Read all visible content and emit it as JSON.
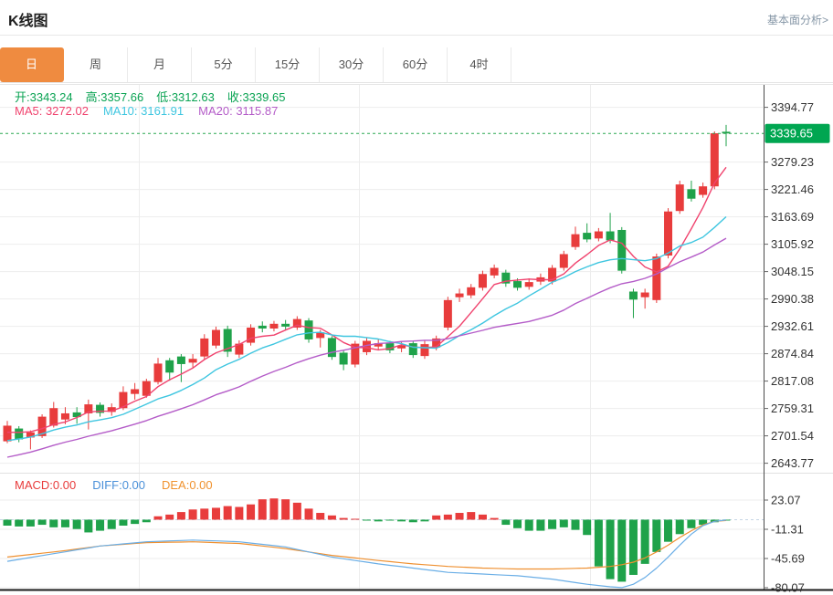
{
  "header": {
    "title": "K线图",
    "link": "基本面分析>"
  },
  "tabs": {
    "items": [
      "日",
      "周",
      "月",
      "5分",
      "15分",
      "30分",
      "60分",
      "4时"
    ],
    "active": "日"
  },
  "info": {
    "open": "开:3343.24",
    "high": "高:3357.66",
    "low": "低:3312.63",
    "close": "收:3339.65"
  },
  "ma_info": {
    "ma5": "MA5: 3272.02",
    "ma10": "MA10: 3161.91",
    "ma20": "MA20: 3115.87"
  },
  "macd_info": {
    "macd": "MACD:0.00",
    "diff": "DIFF:0.00",
    "dea": "DEA:0.00"
  },
  "colors": {
    "accent_orange": "#ef8b40",
    "up_red": "#e83c3c",
    "down_green": "#1fa24a",
    "ohlc_green": "#0aa353",
    "ma5_pink": "#f0436e",
    "ma10_cyan": "#3fc6e0",
    "ma20_purple": "#b45cc8",
    "diff_blue_line": "#6aaee6",
    "dea_orange_line": "#ef9030",
    "macd_label_red": "#e83c3c",
    "diff_label_blue": "#4a90d9",
    "dea_label_orange": "#f0922e",
    "price_line_green": "#2aa852",
    "badge_green": "#00a651",
    "axis_text": "#333333",
    "grid": "#ededed",
    "axis_line": "#4a4a4a",
    "bottom_line": "#1a1a1a",
    "separator": "#e2e2e2",
    "zero_dash": "#c5d5e5",
    "link_gray": "#8596a6"
  },
  "chart_data": {
    "type": "candlestick+macd",
    "title": "K线图",
    "interval": "日",
    "price_axis": {
      "ticks": [
        3394.77,
        3279.23,
        3221.46,
        3163.69,
        3105.92,
        3048.15,
        2990.38,
        2932.61,
        2874.84,
        2817.08,
        2759.31,
        2701.54,
        2643.77
      ],
      "tick_step": 57.77,
      "current_price": 3339.65
    },
    "macd_axis": {
      "ticks": [
        23.07,
        -11.31,
        -45.69,
        -80.07
      ]
    },
    "latest": {
      "open": 3343.24,
      "high": 3357.66,
      "low": 3312.63,
      "close": 3339.65,
      "ma5": 3272.02,
      "ma10": 3161.91,
      "ma20": 3115.87,
      "macd": 0.0,
      "diff": 0.0,
      "dea": 0.0
    },
    "candles": [
      [
        2690,
        2733,
        2686,
        2723
      ],
      [
        2717,
        2722,
        2688,
        2694
      ],
      [
        2698,
        2713,
        2673,
        2709
      ],
      [
        2701,
        2747,
        2697,
        2742
      ],
      [
        2723,
        2773,
        2719,
        2760
      ],
      [
        2736,
        2762,
        2726,
        2749
      ],
      [
        2751,
        2762,
        2727,
        2741
      ],
      [
        2749,
        2778,
        2715,
        2768
      ],
      [
        2767,
        2772,
        2742,
        2750
      ],
      [
        2752,
        2770,
        2744,
        2762
      ],
      [
        2760,
        2806,
        2756,
        2794
      ],
      [
        2790,
        2813,
        2778,
        2800
      ],
      [
        2786,
        2822,
        2782,
        2817
      ],
      [
        2815,
        2866,
        2810,
        2854
      ],
      [
        2861,
        2866,
        2818,
        2835
      ],
      [
        2869,
        2874,
        2815,
        2853
      ],
      [
        2856,
        2874,
        2846,
        2864
      ],
      [
        2869,
        2916,
        2862,
        2907
      ],
      [
        2892,
        2932,
        2886,
        2925
      ],
      [
        2927,
        2934,
        2868,
        2879
      ],
      [
        2873,
        2903,
        2866,
        2896
      ],
      [
        2898,
        2937,
        2892,
        2930
      ],
      [
        2934,
        2943,
        2920,
        2928
      ],
      [
        2928,
        2944,
        2922,
        2938
      ],
      [
        2938,
        2946,
        2924,
        2932
      ],
      [
        2930,
        2954,
        2925,
        2948
      ],
      [
        2945,
        2950,
        2898,
        2905
      ],
      [
        2908,
        2925,
        2888,
        2920
      ],
      [
        2908,
        2912,
        2862,
        2868
      ],
      [
        2877,
        2882,
        2840,
        2852
      ],
      [
        2852,
        2902,
        2846,
        2896
      ],
      [
        2878,
        2908,
        2872,
        2902
      ],
      [
        2890,
        2905,
        2882,
        2897
      ],
      [
        2897,
        2902,
        2876,
        2882
      ],
      [
        2886,
        2900,
        2878,
        2892
      ],
      [
        2897,
        2902,
        2866,
        2872
      ],
      [
        2870,
        2902,
        2864,
        2895
      ],
      [
        2888,
        2913,
        2882,
        2907
      ],
      [
        2930,
        2995,
        2924,
        2988
      ],
      [
        2994,
        3012,
        2984,
        3002
      ],
      [
        2998,
        3022,
        2992,
        3015
      ],
      [
        3014,
        3050,
        3008,
        3043
      ],
      [
        3040,
        3063,
        3034,
        3056
      ],
      [
        3046,
        3052,
        3016,
        3023
      ],
      [
        3028,
        3034,
        3008,
        3014
      ],
      [
        3016,
        3034,
        3010,
        3026
      ],
      [
        3027,
        3044,
        3020,
        3036
      ],
      [
        3027,
        3062,
        3021,
        3056
      ],
      [
        3056,
        3092,
        3050,
        3085
      ],
      [
        3100,
        3143,
        3094,
        3127
      ],
      [
        3130,
        3150,
        3110,
        3116
      ],
      [
        3118,
        3140,
        3112,
        3133
      ],
      [
        3133,
        3172,
        3108,
        3114
      ],
      [
        3136,
        3142,
        3044,
        3050
      ],
      [
        3006,
        3012,
        2950,
        2989
      ],
      [
        2994,
        3012,
        2970,
        3004
      ],
      [
        2988,
        3086,
        2982,
        3080
      ],
      [
        3082,
        3182,
        3076,
        3175
      ],
      [
        3176,
        3240,
        3170,
        3232
      ],
      [
        3222,
        3240,
        3196,
        3202
      ],
      [
        3210,
        3236,
        3204,
        3228
      ],
      [
        3228,
        3344,
        3222,
        3340
      ],
      [
        3343.24,
        3357.66,
        3312.63,
        3339.65
      ]
    ],
    "ma_windows": [
      5,
      10,
      20
    ],
    "macd": {
      "histogram": [
        -7,
        -8,
        -8,
        -6,
        -9,
        -9,
        -11,
        -15,
        -13,
        -11,
        -7,
        -5,
        -3,
        4,
        6,
        9,
        12,
        13,
        14,
        16,
        15,
        18,
        24,
        25,
        24,
        20,
        13,
        8,
        5,
        2,
        1,
        -1,
        -2,
        -1,
        -2,
        -3,
        -2,
        5,
        6,
        8,
        9,
        6,
        2,
        -6,
        -10,
        -13,
        -13,
        -11,
        -9,
        -12,
        -18,
        -55,
        -70,
        -73,
        -65,
        -52,
        -38,
        -26,
        -17,
        -10,
        -6,
        -3,
        -1
      ],
      "diff": [
        -49,
        -46.8,
        -44.5,
        -42.3,
        -40,
        -37.8,
        -35.5,
        -33.3,
        -31,
        -29.8,
        -28.5,
        -27.3,
        -26,
        -25.5,
        -25,
        -24.5,
        -24,
        -24.5,
        -25,
        -25.5,
        -26,
        -27.5,
        -29,
        -30.5,
        -32,
        -35,
        -38,
        -41,
        -44,
        -46,
        -48,
        -50,
        -52,
        -53.7,
        -55.3,
        -57,
        -58.7,
        -60.3,
        -62,
        -62.7,
        -63.3,
        -64,
        -64.7,
        -65.3,
        -66,
        -67.3,
        -68.7,
        -70,
        -72,
        -74,
        -76,
        -77.5,
        -79,
        -80,
        -76,
        -68,
        -57,
        -44,
        -30,
        -17,
        -7,
        -2,
        -0.5
      ],
      "dea": [
        -44,
        -42.5,
        -41,
        -39.5,
        -38,
        -36.3,
        -34.5,
        -32.8,
        -31,
        -30,
        -29,
        -28,
        -27,
        -26.8,
        -26.5,
        -26.3,
        -26,
        -26.5,
        -27,
        -27.5,
        -28,
        -29.5,
        -31,
        -32.5,
        -34,
        -36,
        -38,
        -40,
        -42,
        -43.5,
        -45,
        -46.5,
        -48,
        -49.3,
        -50.7,
        -52,
        -53,
        -54,
        -55,
        -55.7,
        -56.3,
        -57,
        -57.3,
        -57.7,
        -58,
        -58,
        -58,
        -58,
        -57.7,
        -57.3,
        -57,
        -56,
        -55,
        -53,
        -50,
        -45,
        -38,
        -30,
        -21,
        -13,
        -6,
        -2,
        -1
      ]
    },
    "grid": {
      "vertical_x": [
        152,
        393,
        646
      ],
      "horizontal": "at-ticks"
    },
    "legend_position": "top-left-overlay"
  }
}
